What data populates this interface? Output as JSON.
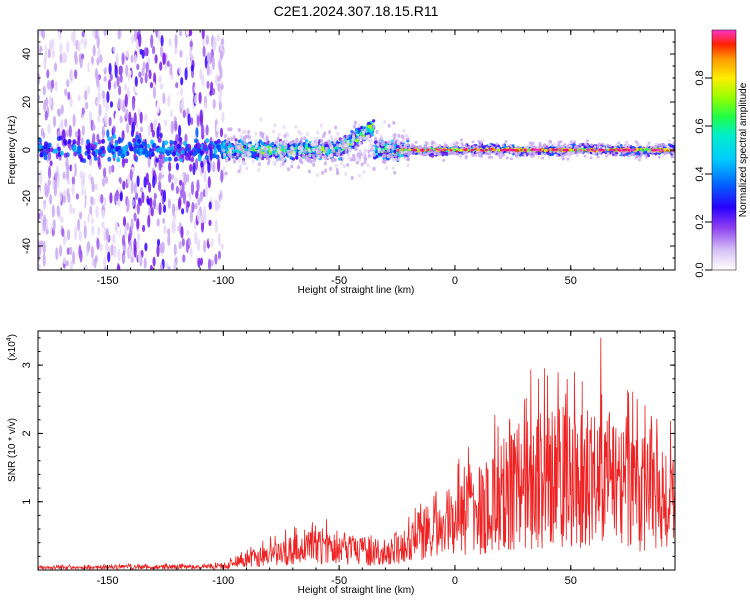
{
  "title": "C2E1.2024.307.18.15.R11",
  "colors": {
    "snr_line": "#ee2222",
    "palette": [
      "#ffffff",
      "#e6d8f8",
      "#c9a8f2",
      "#9b59ee",
      "#7a1ee8",
      "#3300ff",
      "#0055ff",
      "#00b4ff",
      "#00e8d0",
      "#33ff66",
      "#aaff00",
      "#ffee00",
      "#ffaa00",
      "#ff3300",
      "#ff0088",
      "#ff33cc"
    ]
  },
  "chart_data": [
    {
      "id": "spectrogram",
      "type": "heatmap",
      "xlabel": "Height of straight line (km)",
      "ylabel": "Frequency (Hz)",
      "xlim": [
        -180,
        95
      ],
      "ylim": [
        -50,
        50
      ],
      "x_ticks": [
        -150,
        -100,
        -50,
        0,
        50
      ],
      "y_ticks": [
        40,
        20,
        0,
        -20,
        -40
      ],
      "colorbar": {
        "label": "Normalized spectral amplitude",
        "range": [
          0,
          1
        ],
        "ticks": [
          "0.0",
          "0.2",
          "0.4",
          "0.6",
          "0.8"
        ]
      },
      "description_segments": [
        {
          "x_range": [
            -180,
            -100
          ],
          "character": "diffuse scatter",
          "peak_amp": 0.35
        },
        {
          "x_range": [
            -100,
            -35
          ],
          "character": "band near 0 Hz",
          "peak_amp": 0.6
        },
        {
          "x_range": [
            -50,
            -35
          ],
          "character": "drift upward to ~10 Hz",
          "peak_amp": 0.45
        },
        {
          "x_range": [
            -25,
            95
          ],
          "character": "narrow line near 0 Hz",
          "peak_amp": 0.95
        }
      ]
    },
    {
      "id": "snr",
      "type": "line",
      "xlabel": "Height of straight line (km)",
      "ylabel": "SNR (10 * v/v)",
      "y_multiplier": "(x10",
      "y_multiplier_exp": "4",
      "xlim": [
        -180,
        95
      ],
      "ylim": [
        0,
        3.5
      ],
      "x_ticks": [
        -150,
        -100,
        -50,
        0,
        50
      ],
      "y_ticks": [
        1,
        2,
        3
      ],
      "envelope": [
        {
          "x": -180,
          "y": 0.05
        },
        {
          "x": -100,
          "y": 0.08
        },
        {
          "x": -90,
          "y": 0.25
        },
        {
          "x": -60,
          "y": 0.55
        },
        {
          "x": -45,
          "y": 0.45
        },
        {
          "x": -30,
          "y": 0.35
        },
        {
          "x": -15,
          "y": 0.9
        },
        {
          "x": 0,
          "y": 1.1
        },
        {
          "x": 15,
          "y": 1.6
        },
        {
          "x": 30,
          "y": 2.0
        },
        {
          "x": 45,
          "y": 2.2
        },
        {
          "x": 60,
          "y": 2.1
        },
        {
          "x": 75,
          "y": 1.9
        },
        {
          "x": 95,
          "y": 1.5
        }
      ],
      "peaks": [
        {
          "x": 63,
          "y": 3.4
        },
        {
          "x": 36,
          "y": 2.8
        },
        {
          "x": 40,
          "y": 2.85
        },
        {
          "x": 75,
          "y": 2.6
        },
        {
          "x": 30,
          "y": 2.5
        }
      ]
    }
  ]
}
